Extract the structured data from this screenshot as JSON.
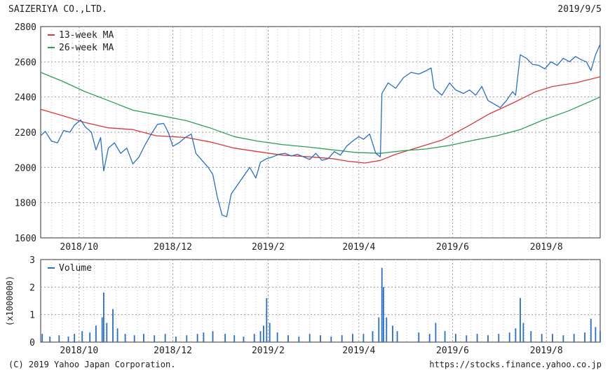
{
  "header": {
    "company": "SAIZERIYA CO.,LTD.",
    "date": "2019/9/5"
  },
  "footer": {
    "copyright": "(C) 2019 Yahoo Japan Corporation.",
    "url": "https://stocks.finance.yahoo.co.jp"
  },
  "colors": {
    "price": "#2a6fc0",
    "ma13": "#d43b3b",
    "ma26": "#2e9e55",
    "volume": "#2a6fc0",
    "grid": "#9a9a9a"
  },
  "chart_data": [
    {
      "type": "line",
      "ylim": [
        1600,
        2800
      ],
      "yticks": [
        1600,
        1800,
        2000,
        2200,
        2400,
        2600,
        2800
      ],
      "xlim": [
        "2018-09-06",
        "2019-09-05"
      ],
      "xticks": [
        {
          "date": "2018-10-01",
          "label": "2018/10"
        },
        {
          "date": "2018-12-01",
          "label": "2018/12"
        },
        {
          "date": "2019-02-01",
          "label": "2019/2"
        },
        {
          "date": "2019-04-01",
          "label": "2019/4"
        },
        {
          "date": "2019-06-01",
          "label": "2019/6"
        },
        {
          "date": "2019-08-01",
          "label": "2019/8"
        }
      ],
      "grid": true,
      "legend_position": "top-left",
      "series": [
        {
          "key": "ma13",
          "name": "13-week MA",
          "points": [
            [
              "2018-09-06",
              2330
            ],
            [
              "2018-09-20",
              2295
            ],
            [
              "2018-10-05",
              2255
            ],
            [
              "2018-10-20",
              2225
            ],
            [
              "2018-11-05",
              2215
            ],
            [
              "2018-11-20",
              2180
            ],
            [
              "2018-12-10",
              2170
            ],
            [
              "2018-12-25",
              2145
            ],
            [
              "2019-01-10",
              2110
            ],
            [
              "2019-01-25",
              2090
            ],
            [
              "2019-02-10",
              2070
            ],
            [
              "2019-02-28",
              2060
            ],
            [
              "2019-03-15",
              2050
            ],
            [
              "2019-03-25",
              2035
            ],
            [
              "2019-04-05",
              2025
            ],
            [
              "2019-04-15",
              2040
            ],
            [
              "2019-04-25",
              2075
            ],
            [
              "2019-05-10",
              2115
            ],
            [
              "2019-05-25",
              2155
            ],
            [
              "2019-06-10",
              2230
            ],
            [
              "2019-06-25",
              2305
            ],
            [
              "2019-07-10",
              2365
            ],
            [
              "2019-07-25",
              2430
            ],
            [
              "2019-08-05",
              2460
            ],
            [
              "2019-08-20",
              2480
            ],
            [
              "2019-09-05",
              2515
            ]
          ]
        },
        {
          "key": "ma26",
          "name": "26-week MA",
          "points": [
            [
              "2018-09-06",
              2540
            ],
            [
              "2018-09-20",
              2490
            ],
            [
              "2018-10-05",
              2430
            ],
            [
              "2018-10-20",
              2380
            ],
            [
              "2018-11-05",
              2325
            ],
            [
              "2018-11-20",
              2300
            ],
            [
              "2018-12-10",
              2265
            ],
            [
              "2018-12-25",
              2225
            ],
            [
              "2019-01-10",
              2175
            ],
            [
              "2019-01-25",
              2150
            ],
            [
              "2019-02-10",
              2130
            ],
            [
              "2019-02-28",
              2115
            ],
            [
              "2019-03-15",
              2100
            ],
            [
              "2019-03-30",
              2085
            ],
            [
              "2019-04-15",
              2080
            ],
            [
              "2019-04-30",
              2095
            ],
            [
              "2019-05-15",
              2105
            ],
            [
              "2019-05-30",
              2125
            ],
            [
              "2019-06-15",
              2155
            ],
            [
              "2019-06-30",
              2180
            ],
            [
              "2019-07-15",
              2215
            ],
            [
              "2019-07-30",
              2270
            ],
            [
              "2019-08-15",
              2320
            ],
            [
              "2019-09-05",
              2400
            ]
          ]
        },
        {
          "key": "price",
          "name": "",
          "points": [
            [
              "2018-09-06",
              2180
            ],
            [
              "2018-09-09",
              2205
            ],
            [
              "2018-09-13",
              2150
            ],
            [
              "2018-09-17",
              2140
            ],
            [
              "2018-09-21",
              2210
            ],
            [
              "2018-09-25",
              2200
            ],
            [
              "2018-09-28",
              2240
            ],
            [
              "2018-10-02",
              2270
            ],
            [
              "2018-10-05",
              2230
            ],
            [
              "2018-10-09",
              2200
            ],
            [
              "2018-10-12",
              2100
            ],
            [
              "2018-10-15",
              2170
            ],
            [
              "2018-10-17",
              1980
            ],
            [
              "2018-10-20",
              2110
            ],
            [
              "2018-10-24",
              2140
            ],
            [
              "2018-10-28",
              2080
            ],
            [
              "2018-11-01",
              2110
            ],
            [
              "2018-11-05",
              2020
            ],
            [
              "2018-11-09",
              2060
            ],
            [
              "2018-11-13",
              2130
            ],
            [
              "2018-11-17",
              2190
            ],
            [
              "2018-11-21",
              2245
            ],
            [
              "2018-11-25",
              2250
            ],
            [
              "2018-11-28",
              2200
            ],
            [
              "2018-12-01",
              2120
            ],
            [
              "2018-12-05",
              2140
            ],
            [
              "2018-12-09",
              2170
            ],
            [
              "2018-12-13",
              2190
            ],
            [
              "2018-12-16",
              2080
            ],
            [
              "2018-12-20",
              2040
            ],
            [
              "2018-12-24",
              2000
            ],
            [
              "2018-12-27",
              1960
            ],
            [
              "2018-12-30",
              1830
            ],
            [
              "2019-01-02",
              1730
            ],
            [
              "2019-01-05",
              1720
            ],
            [
              "2019-01-08",
              1850
            ],
            [
              "2019-01-12",
              1900
            ],
            [
              "2019-01-16",
              1950
            ],
            [
              "2019-01-20",
              2000
            ],
            [
              "2019-01-24",
              1940
            ],
            [
              "2019-01-27",
              2030
            ],
            [
              "2019-01-31",
              2050
            ],
            [
              "2019-02-04",
              2060
            ],
            [
              "2019-02-08",
              2075
            ],
            [
              "2019-02-12",
              2080
            ],
            [
              "2019-02-16",
              2065
            ],
            [
              "2019-02-20",
              2075
            ],
            [
              "2019-02-24",
              2060
            ],
            [
              "2019-02-28",
              2045
            ],
            [
              "2019-03-04",
              2080
            ],
            [
              "2019-03-08",
              2040
            ],
            [
              "2019-03-12",
              2050
            ],
            [
              "2019-03-16",
              2090
            ],
            [
              "2019-03-20",
              2070
            ],
            [
              "2019-03-24",
              2120
            ],
            [
              "2019-03-28",
              2150
            ],
            [
              "2019-04-01",
              2175
            ],
            [
              "2019-04-04",
              2160
            ],
            [
              "2019-04-08",
              2190
            ],
            [
              "2019-04-12",
              2080
            ],
            [
              "2019-04-15",
              2060
            ],
            [
              "2019-04-16",
              2420
            ],
            [
              "2019-04-20",
              2480
            ],
            [
              "2019-04-25",
              2450
            ],
            [
              "2019-04-30",
              2510
            ],
            [
              "2019-05-05",
              2540
            ],
            [
              "2019-05-10",
              2530
            ],
            [
              "2019-05-15",
              2550
            ],
            [
              "2019-05-18",
              2565
            ],
            [
              "2019-05-20",
              2450
            ],
            [
              "2019-05-25",
              2410
            ],
            [
              "2019-05-30",
              2480
            ],
            [
              "2019-06-03",
              2440
            ],
            [
              "2019-06-08",
              2420
            ],
            [
              "2019-06-12",
              2440
            ],
            [
              "2019-06-16",
              2410
            ],
            [
              "2019-06-20",
              2460
            ],
            [
              "2019-06-24",
              2380
            ],
            [
              "2019-06-28",
              2360
            ],
            [
              "2019-07-02",
              2340
            ],
            [
              "2019-07-06",
              2380
            ],
            [
              "2019-07-10",
              2430
            ],
            [
              "2019-07-12",
              2410
            ],
            [
              "2019-07-15",
              2640
            ],
            [
              "2019-07-19",
              2620
            ],
            [
              "2019-07-23",
              2585
            ],
            [
              "2019-07-27",
              2580
            ],
            [
              "2019-07-31",
              2560
            ],
            [
              "2019-08-04",
              2600
            ],
            [
              "2019-08-08",
              2580
            ],
            [
              "2019-08-12",
              2620
            ],
            [
              "2019-08-16",
              2600
            ],
            [
              "2019-08-20",
              2630
            ],
            [
              "2019-08-24",
              2610
            ],
            [
              "2019-08-27",
              2600
            ],
            [
              "2019-08-30",
              2550
            ],
            [
              "2019-09-02",
              2640
            ],
            [
              "2019-09-05",
              2700
            ]
          ]
        }
      ]
    },
    {
      "type": "bar",
      "title": "",
      "ylabel": "(x1000000)",
      "ylim": [
        0,
        3
      ],
      "yticks": [
        0,
        1,
        2,
        3
      ],
      "legend_position": "top-left",
      "series": [
        {
          "key": "volume",
          "name": "Volume",
          "points": [
            [
              "2018-09-07",
              0.3
            ],
            [
              "2018-09-12",
              0.2
            ],
            [
              "2018-09-18",
              0.25
            ],
            [
              "2018-09-24",
              0.2
            ],
            [
              "2018-09-28",
              0.3
            ],
            [
              "2018-10-03",
              0.4
            ],
            [
              "2018-10-08",
              0.35
            ],
            [
              "2018-10-12",
              0.6
            ],
            [
              "2018-10-16",
              0.9
            ],
            [
              "2018-10-17",
              1.8
            ],
            [
              "2018-10-19",
              0.7
            ],
            [
              "2018-10-23",
              1.2
            ],
            [
              "2018-10-26",
              0.5
            ],
            [
              "2018-10-31",
              0.3
            ],
            [
              "2018-11-06",
              0.25
            ],
            [
              "2018-11-12",
              0.3
            ],
            [
              "2018-11-19",
              0.25
            ],
            [
              "2018-11-26",
              0.3
            ],
            [
              "2018-12-03",
              0.2
            ],
            [
              "2018-12-10",
              0.25
            ],
            [
              "2018-12-17",
              0.3
            ],
            [
              "2018-12-21",
              0.35
            ],
            [
              "2018-12-27",
              0.4
            ],
            [
              "2019-01-04",
              0.3
            ],
            [
              "2019-01-10",
              0.25
            ],
            [
              "2019-01-16",
              0.2
            ],
            [
              "2019-01-23",
              0.3
            ],
            [
              "2019-01-27",
              0.4
            ],
            [
              "2019-01-29",
              0.6
            ],
            [
              "2019-01-31",
              1.6
            ],
            [
              "2019-02-02",
              0.7
            ],
            [
              "2019-02-07",
              0.35
            ],
            [
              "2019-02-14",
              0.25
            ],
            [
              "2019-02-21",
              0.2
            ],
            [
              "2019-02-28",
              0.3
            ],
            [
              "2019-03-07",
              0.25
            ],
            [
              "2019-03-14",
              0.2
            ],
            [
              "2019-03-21",
              0.25
            ],
            [
              "2019-03-28",
              0.3
            ],
            [
              "2019-04-04",
              0.3
            ],
            [
              "2019-04-10",
              0.4
            ],
            [
              "2019-04-14",
              0.9
            ],
            [
              "2019-04-16",
              2.7
            ],
            [
              "2019-04-17",
              2.0
            ],
            [
              "2019-04-19",
              0.9
            ],
            [
              "2019-04-23",
              0.6
            ],
            [
              "2019-04-26",
              0.4
            ],
            [
              "2019-05-10",
              0.35
            ],
            [
              "2019-05-17",
              0.3
            ],
            [
              "2019-05-21",
              0.7
            ],
            [
              "2019-05-27",
              0.4
            ],
            [
              "2019-06-03",
              0.3
            ],
            [
              "2019-06-10",
              0.25
            ],
            [
              "2019-06-17",
              0.3
            ],
            [
              "2019-06-24",
              0.25
            ],
            [
              "2019-07-01",
              0.3
            ],
            [
              "2019-07-08",
              0.35
            ],
            [
              "2019-07-12",
              0.5
            ],
            [
              "2019-07-15",
              1.6
            ],
            [
              "2019-07-17",
              0.7
            ],
            [
              "2019-07-22",
              0.4
            ],
            [
              "2019-07-29",
              0.3
            ],
            [
              "2019-08-05",
              0.3
            ],
            [
              "2019-08-12",
              0.25
            ],
            [
              "2019-08-19",
              0.3
            ],
            [
              "2019-08-26",
              0.35
            ],
            [
              "2019-08-30",
              0.85
            ],
            [
              "2019-09-02",
              0.55
            ],
            [
              "2019-09-05",
              0.4
            ]
          ]
        }
      ]
    }
  ]
}
